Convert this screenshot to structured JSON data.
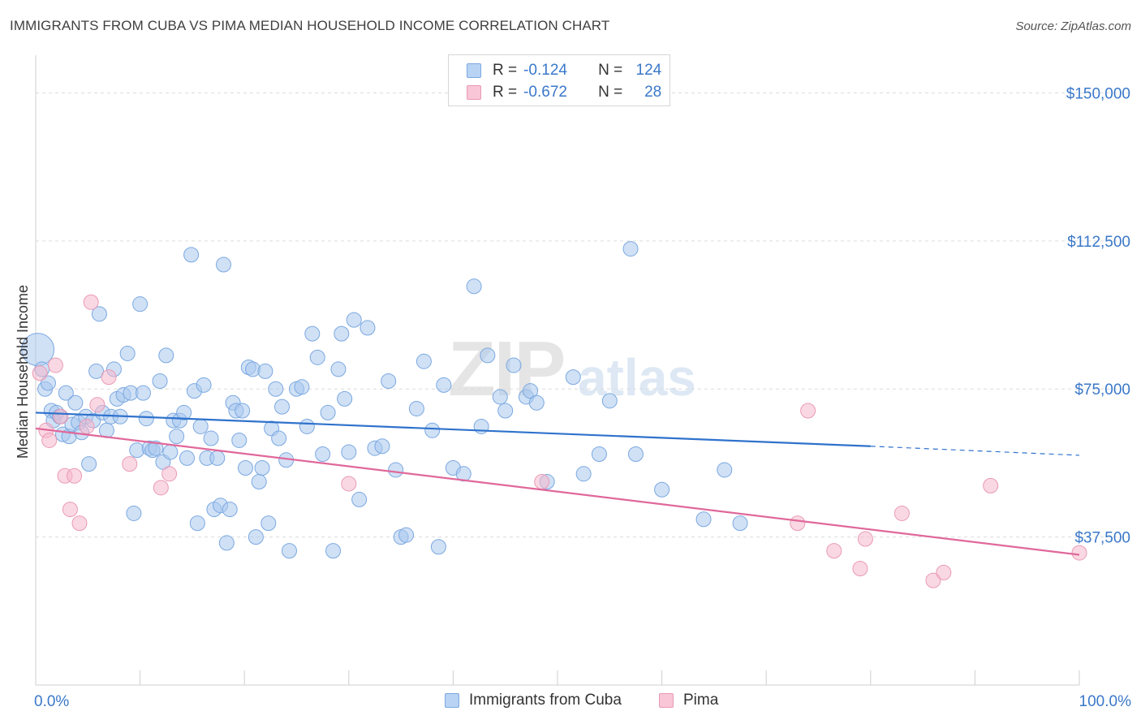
{
  "title": "IMMIGRANTS FROM CUBA VS PIMA MEDIAN HOUSEHOLD INCOME CORRELATION CHART",
  "source": "Source: ZipAtlas.com",
  "watermark": {
    "zip": "ZIP",
    "atlas": "atlas"
  },
  "legend": {
    "r_label": "R =",
    "n_label": "N =",
    "series": [
      {
        "r": "-0.124",
        "n": "124",
        "fill": "#b8d3f3",
        "stroke": "#7ba8e0"
      },
      {
        "r": "-0.672",
        "n": "28",
        "fill": "#f8c6d6",
        "stroke": "#e99ab4"
      }
    ]
  },
  "bottom_legend": [
    {
      "label": "Immigrants from Cuba"
    },
    {
      "label": "Pima"
    }
  ],
  "chart_data": {
    "type": "scatter",
    "xlabel": "",
    "ylabel": "Median Household Income",
    "xlim": [
      0,
      100
    ],
    "ylim": [
      0,
      157500
    ],
    "x_tick_labels": {
      "left": "0.0%",
      "right": "100.0%"
    },
    "y_ticks": [
      {
        "value": 37500,
        "label": "$37,500"
      },
      {
        "value": 75000,
        "label": "$75,000"
      },
      {
        "value": 112500,
        "label": "$112,500"
      },
      {
        "value": 150000,
        "label": "$150,000"
      }
    ],
    "colors": {
      "cuba_point": "#a9c9ef",
      "cuba_line": "#2f72cc",
      "pima_point": "#f5b8cc",
      "pima_line": "#e0689a",
      "tick_label": "#3a78c9"
    },
    "series": [
      {
        "name": "Immigrants from Cuba",
        "trend": {
          "x0": 0,
          "y0": 69000,
          "x1": 80,
          "y1": 60500,
          "dash_to_x": 100,
          "dash_to_y": 58200
        },
        "points": [
          [
            0.2,
            85000
          ],
          [
            0.6,
            80000
          ],
          [
            0.9,
            75000
          ],
          [
            1.2,
            76500
          ],
          [
            1.5,
            69500
          ],
          [
            1.7,
            67000
          ],
          [
            2.0,
            69000
          ],
          [
            2.3,
            68000
          ],
          [
            2.6,
            63500
          ],
          [
            2.9,
            74000
          ],
          [
            3.2,
            63000
          ],
          [
            3.5,
            66000
          ],
          [
            3.8,
            71500
          ],
          [
            4.1,
            66500
          ],
          [
            4.4,
            64000
          ],
          [
            4.8,
            68000
          ],
          [
            5.1,
            56000
          ],
          [
            5.5,
            67000
          ],
          [
            5.8,
            79500
          ],
          [
            6.1,
            94000
          ],
          [
            6.4,
            69000
          ],
          [
            6.8,
            64500
          ],
          [
            7.2,
            68000
          ],
          [
            7.5,
            80000
          ],
          [
            7.8,
            72500
          ],
          [
            8.1,
            68000
          ],
          [
            8.4,
            73500
          ],
          [
            8.8,
            84000
          ],
          [
            9.1,
            74000
          ],
          [
            9.4,
            43500
          ],
          [
            9.7,
            59500
          ],
          [
            10.0,
            96500
          ],
          [
            10.3,
            74000
          ],
          [
            10.6,
            67500
          ],
          [
            10.9,
            60000
          ],
          [
            11.2,
            59500
          ],
          [
            11.5,
            60000
          ],
          [
            11.9,
            77000
          ],
          [
            12.2,
            56500
          ],
          [
            12.5,
            83500
          ],
          [
            12.9,
            59000
          ],
          [
            13.2,
            67000
          ],
          [
            13.5,
            63000
          ],
          [
            13.8,
            67000
          ],
          [
            14.2,
            69000
          ],
          [
            14.5,
            57500
          ],
          [
            14.9,
            109000
          ],
          [
            15.2,
            74500
          ],
          [
            15.5,
            41000
          ],
          [
            15.8,
            65500
          ],
          [
            16.1,
            76000
          ],
          [
            16.4,
            57500
          ],
          [
            16.8,
            62500
          ],
          [
            17.1,
            44500
          ],
          [
            17.4,
            57500
          ],
          [
            17.7,
            45500
          ],
          [
            18.0,
            106500
          ],
          [
            18.3,
            36000
          ],
          [
            18.6,
            44500
          ],
          [
            18.9,
            71500
          ],
          [
            19.2,
            69500
          ],
          [
            19.5,
            62000
          ],
          [
            19.8,
            69500
          ],
          [
            20.1,
            55000
          ],
          [
            20.4,
            80500
          ],
          [
            20.8,
            80000
          ],
          [
            21.1,
            37500
          ],
          [
            21.4,
            51500
          ],
          [
            21.7,
            55000
          ],
          [
            22.0,
            79500
          ],
          [
            22.3,
            41000
          ],
          [
            22.6,
            65000
          ],
          [
            23.0,
            75000
          ],
          [
            23.3,
            62500
          ],
          [
            23.6,
            70500
          ],
          [
            24.0,
            57000
          ],
          [
            24.3,
            34000
          ],
          [
            25.0,
            75000
          ],
          [
            25.5,
            75500
          ],
          [
            26.0,
            65500
          ],
          [
            26.5,
            89000
          ],
          [
            27.0,
            83000
          ],
          [
            27.5,
            58500
          ],
          [
            28.0,
            69000
          ],
          [
            28.5,
            34000
          ],
          [
            29.0,
            80000
          ],
          [
            29.3,
            89000
          ],
          [
            29.6,
            72500
          ],
          [
            30.0,
            59000
          ],
          [
            30.5,
            92500
          ],
          [
            31.0,
            47000
          ],
          [
            31.8,
            90500
          ],
          [
            32.5,
            60000
          ],
          [
            33.2,
            60500
          ],
          [
            33.8,
            77000
          ],
          [
            34.5,
            54500
          ],
          [
            35.0,
            37500
          ],
          [
            35.5,
            38000
          ],
          [
            36.5,
            70000
          ],
          [
            37.2,
            82000
          ],
          [
            38.0,
            64500
          ],
          [
            38.6,
            35000
          ],
          [
            39.1,
            76000
          ],
          [
            40.0,
            55000
          ],
          [
            41.0,
            53500
          ],
          [
            42.0,
            101000
          ],
          [
            42.7,
            65500
          ],
          [
            43.3,
            83500
          ],
          [
            44.5,
            73000
          ],
          [
            45.0,
            69500
          ],
          [
            45.8,
            81000
          ],
          [
            47.0,
            73000
          ],
          [
            47.4,
            74500
          ],
          [
            48.0,
            71500
          ],
          [
            49.0,
            51500
          ],
          [
            51.5,
            78000
          ],
          [
            52.5,
            53500
          ],
          [
            54.0,
            58500
          ],
          [
            55.0,
            72000
          ],
          [
            57.0,
            110500
          ],
          [
            57.5,
            58500
          ],
          [
            60.0,
            49500
          ],
          [
            64.0,
            42000
          ],
          [
            66.0,
            54500
          ],
          [
            67.5,
            41000
          ]
        ]
      },
      {
        "name": "Pima",
        "trend": {
          "x0": 0,
          "y0": 65000,
          "x1": 100,
          "y1": 33000
        },
        "points": [
          [
            0.4,
            79000
          ],
          [
            1.0,
            64500
          ],
          [
            1.3,
            62000
          ],
          [
            1.9,
            81000
          ],
          [
            2.4,
            68000
          ],
          [
            2.8,
            53000
          ],
          [
            3.3,
            44500
          ],
          [
            3.7,
            53000
          ],
          [
            4.2,
            41000
          ],
          [
            4.9,
            65500
          ],
          [
            5.3,
            97000
          ],
          [
            5.9,
            71000
          ],
          [
            7.0,
            78000
          ],
          [
            9.0,
            56000
          ],
          [
            12.0,
            50000
          ],
          [
            12.8,
            53500
          ],
          [
            30.0,
            51000
          ],
          [
            48.5,
            51500
          ],
          [
            73.0,
            41000
          ],
          [
            74.0,
            69500
          ],
          [
            76.5,
            34000
          ],
          [
            79.0,
            29500
          ],
          [
            79.5,
            37000
          ],
          [
            83.0,
            43500
          ],
          [
            86.0,
            26500
          ],
          [
            87.0,
            28500
          ],
          [
            91.5,
            50500
          ],
          [
            100.0,
            33500
          ]
        ]
      }
    ]
  }
}
